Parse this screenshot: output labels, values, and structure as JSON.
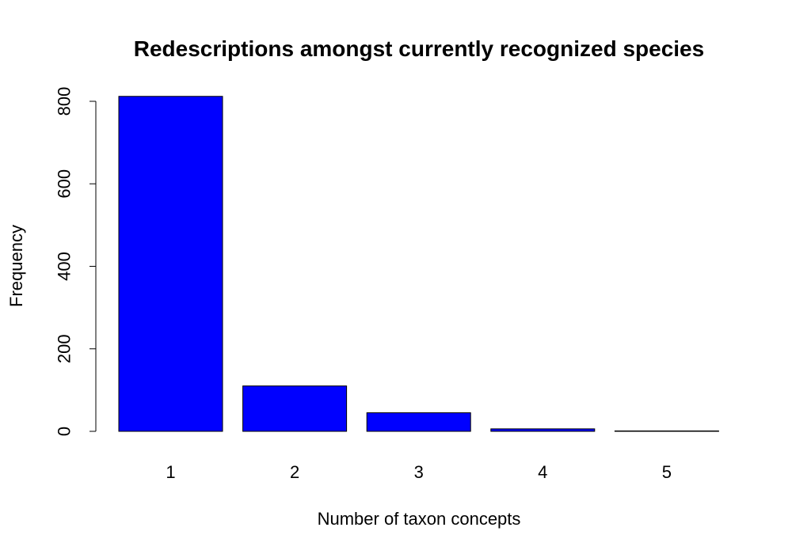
{
  "chart_data": {
    "type": "bar",
    "title": "Redescriptions amongst currently recognized species",
    "xlabel": "Number of taxon concepts",
    "ylabel": "Frequency",
    "categories": [
      "1",
      "2",
      "3",
      "4",
      "5"
    ],
    "values": [
      812,
      110,
      45,
      6,
      1
    ],
    "ylim": [
      0,
      800
    ],
    "yticks": [
      0,
      200,
      400,
      600,
      800
    ],
    "grid": false,
    "legend": "none",
    "colors": {
      "bar_fill": "#0000FF",
      "bar_stroke": "#000000",
      "axis": "#000000",
      "text": "#000000",
      "background": "#FFFFFF"
    }
  }
}
